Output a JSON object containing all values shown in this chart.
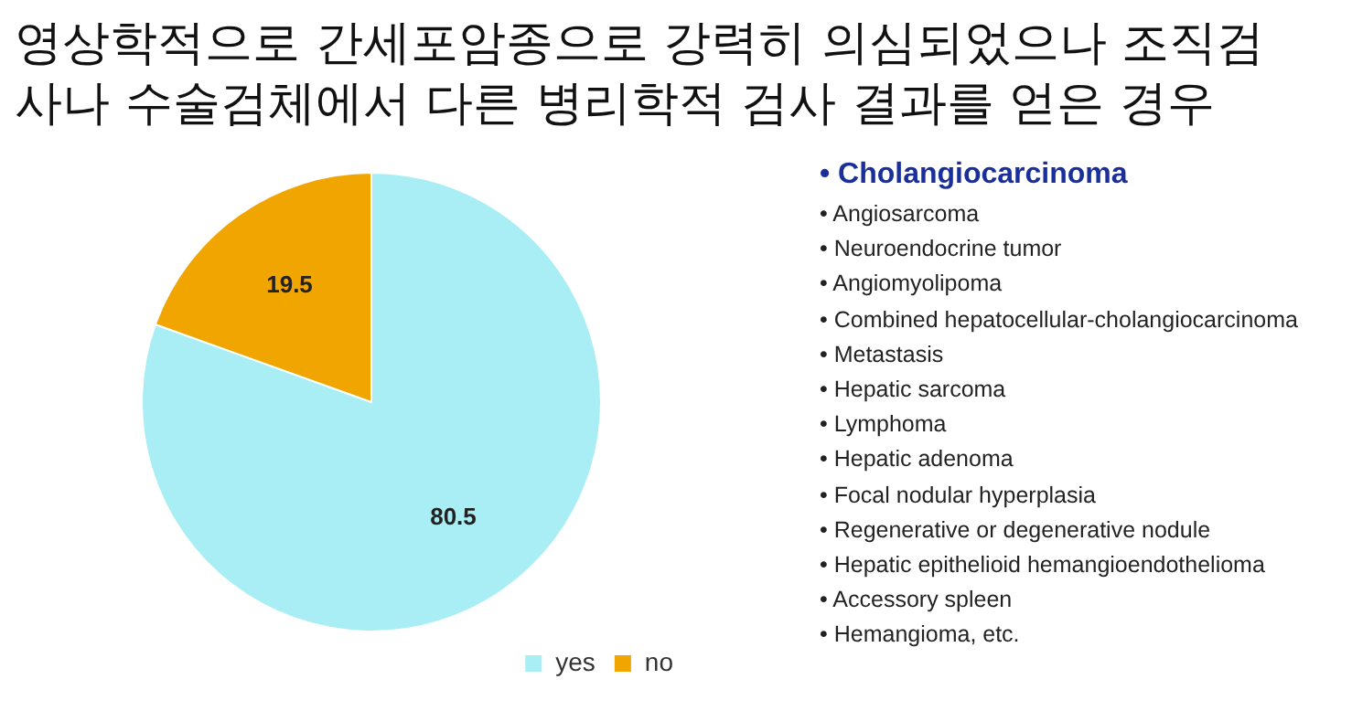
{
  "chart_data": {
    "type": "pie",
    "title": "영상학적으로 간세포암종으로 강력히 의심되었으나 조직검사나 수술검체에서 다른 병리학적 검사 결과를 얻은 경우",
    "categories": [
      "yes",
      "no"
    ],
    "values": [
      80.5,
      19.5
    ],
    "colors": [
      "#a8eef4",
      "#f0a500"
    ],
    "data_labels": true,
    "legend": "bottom",
    "annotations": [
      "• Cholangiocarcinoma",
      "• Angiosarcoma",
      "• Neuroendocrine tumor",
      "• Angiomyolipoma",
      "• Combined hepatocellular-cholangiocarcinoma",
      "• Metastasis",
      "• Hepatic sarcoma",
      "• Lymphoma",
      "• Hepatic adenoma",
      "• Focal nodular hyperplasia",
      "• Regenerative or degenerative nodule",
      "• Hepatic epithelioid hemangioendothelioma",
      "• Accessory spleen",
      "• Hemangioma, etc."
    ]
  }
}
